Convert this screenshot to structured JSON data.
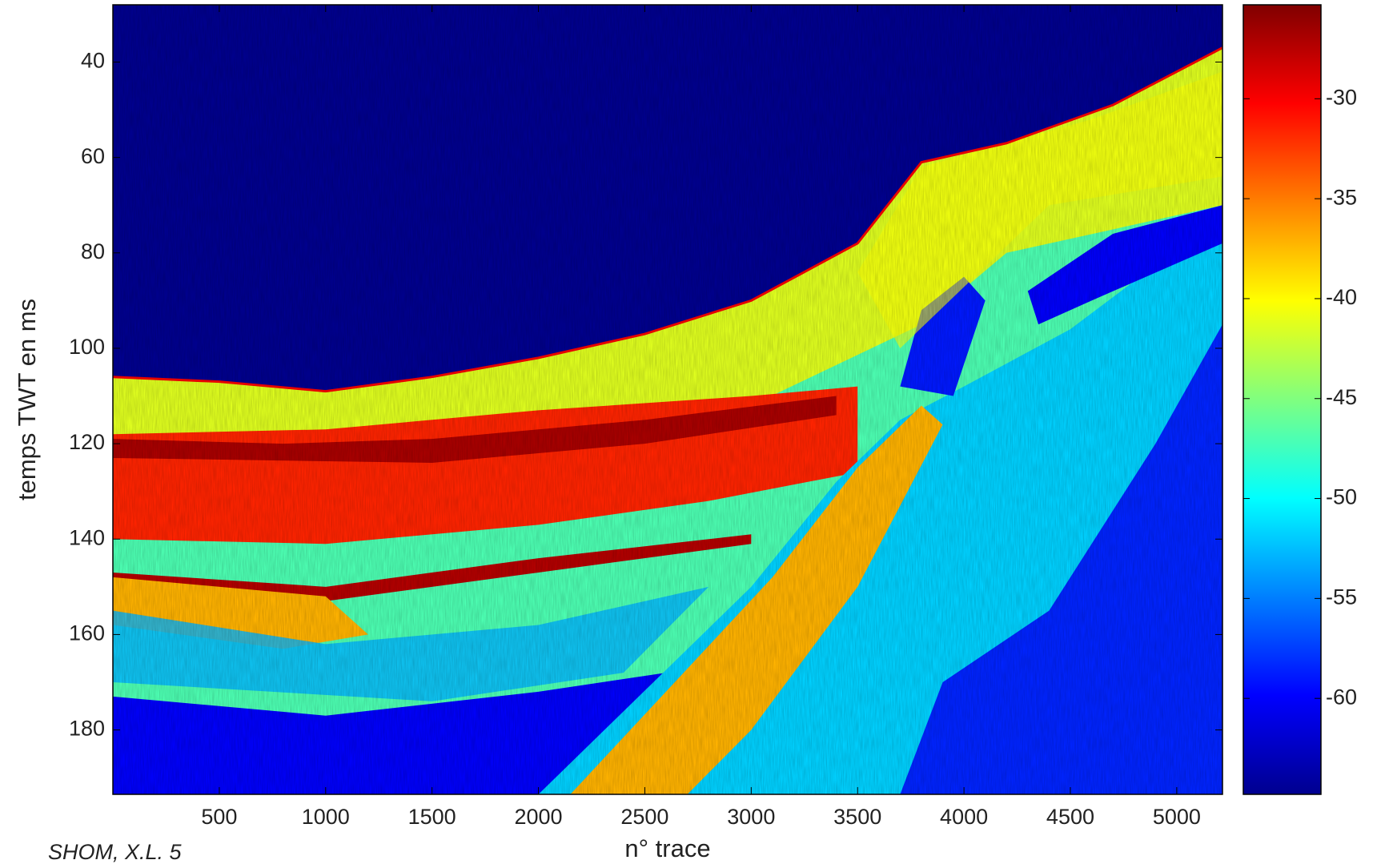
{
  "chart_data": {
    "type": "heatmap",
    "x_label": "n° trace",
    "y_label": "temps TWT en ms",
    "credit": "SHOM, X.L. 5",
    "colormap": "jet",
    "xlim": [
      0,
      5215
    ],
    "xticks": [
      500,
      1000,
      1500,
      2000,
      2500,
      3000,
      3500,
      4000,
      4500,
      5000
    ],
    "ylim": [
      28,
      193.5
    ],
    "yticks": [
      40,
      60,
      80,
      100,
      120,
      140,
      160,
      180
    ],
    "y_inverted": true,
    "clim": [
      -64.8,
      -25.3
    ],
    "cticks": [
      -60,
      -55,
      -50,
      -45,
      -40,
      -35,
      -30
    ]
  }
}
